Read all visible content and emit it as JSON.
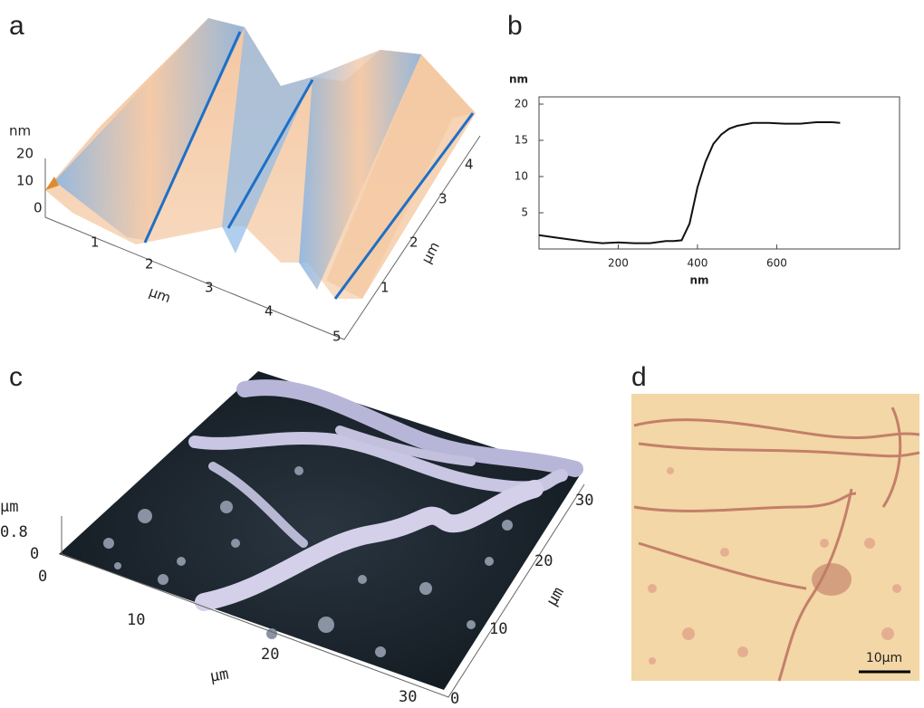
{
  "panel_a": {
    "label": "a",
    "z_unit": "nm",
    "z_ticks": [
      20,
      10,
      0
    ],
    "x_ticks": [
      1,
      2,
      3,
      4,
      5
    ],
    "x_unit": "µm",
    "y_ticks": [
      1,
      2,
      3,
      4
    ],
    "y_unit": "µm"
  },
  "panel_c": {
    "label": "c",
    "z_unit": "µm",
    "z_ticks": [
      0.8,
      0
    ],
    "x_ticks": [
      0,
      10,
      20,
      30
    ],
    "x_unit": "µm",
    "y_ticks": [
      0,
      10,
      20,
      30
    ],
    "y_unit": "µm"
  },
  "panel_d": {
    "label": "d",
    "scale_bar": "10µm"
  },
  "chart_data": {
    "type": "line",
    "panel_label": "b",
    "xlabel": "nm",
    "ylabel": "nm",
    "x": [
      0,
      40,
      80,
      120,
      160,
      200,
      240,
      280,
      320,
      340,
      360,
      380,
      400,
      420,
      440,
      460,
      480,
      500,
      540,
      580,
      620,
      660,
      700,
      740,
      760
    ],
    "series": [
      {
        "color": "#111111",
        "values": [
          1.9,
          1.6,
          1.3,
          1.0,
          0.8,
          0.9,
          0.8,
          0.8,
          1.1,
          1.1,
          1.2,
          3.5,
          8.5,
          12,
          14.5,
          15.8,
          16.6,
          17.0,
          17.4,
          17.4,
          17.3,
          17.3,
          17.5,
          17.5,
          17.4
        ]
      }
    ],
    "xlim": [
      0,
      910
    ],
    "ylim": [
      0,
      21
    ],
    "xticks": [
      200,
      400,
      600
    ],
    "yticks": [
      5,
      10,
      15,
      20
    ]
  }
}
